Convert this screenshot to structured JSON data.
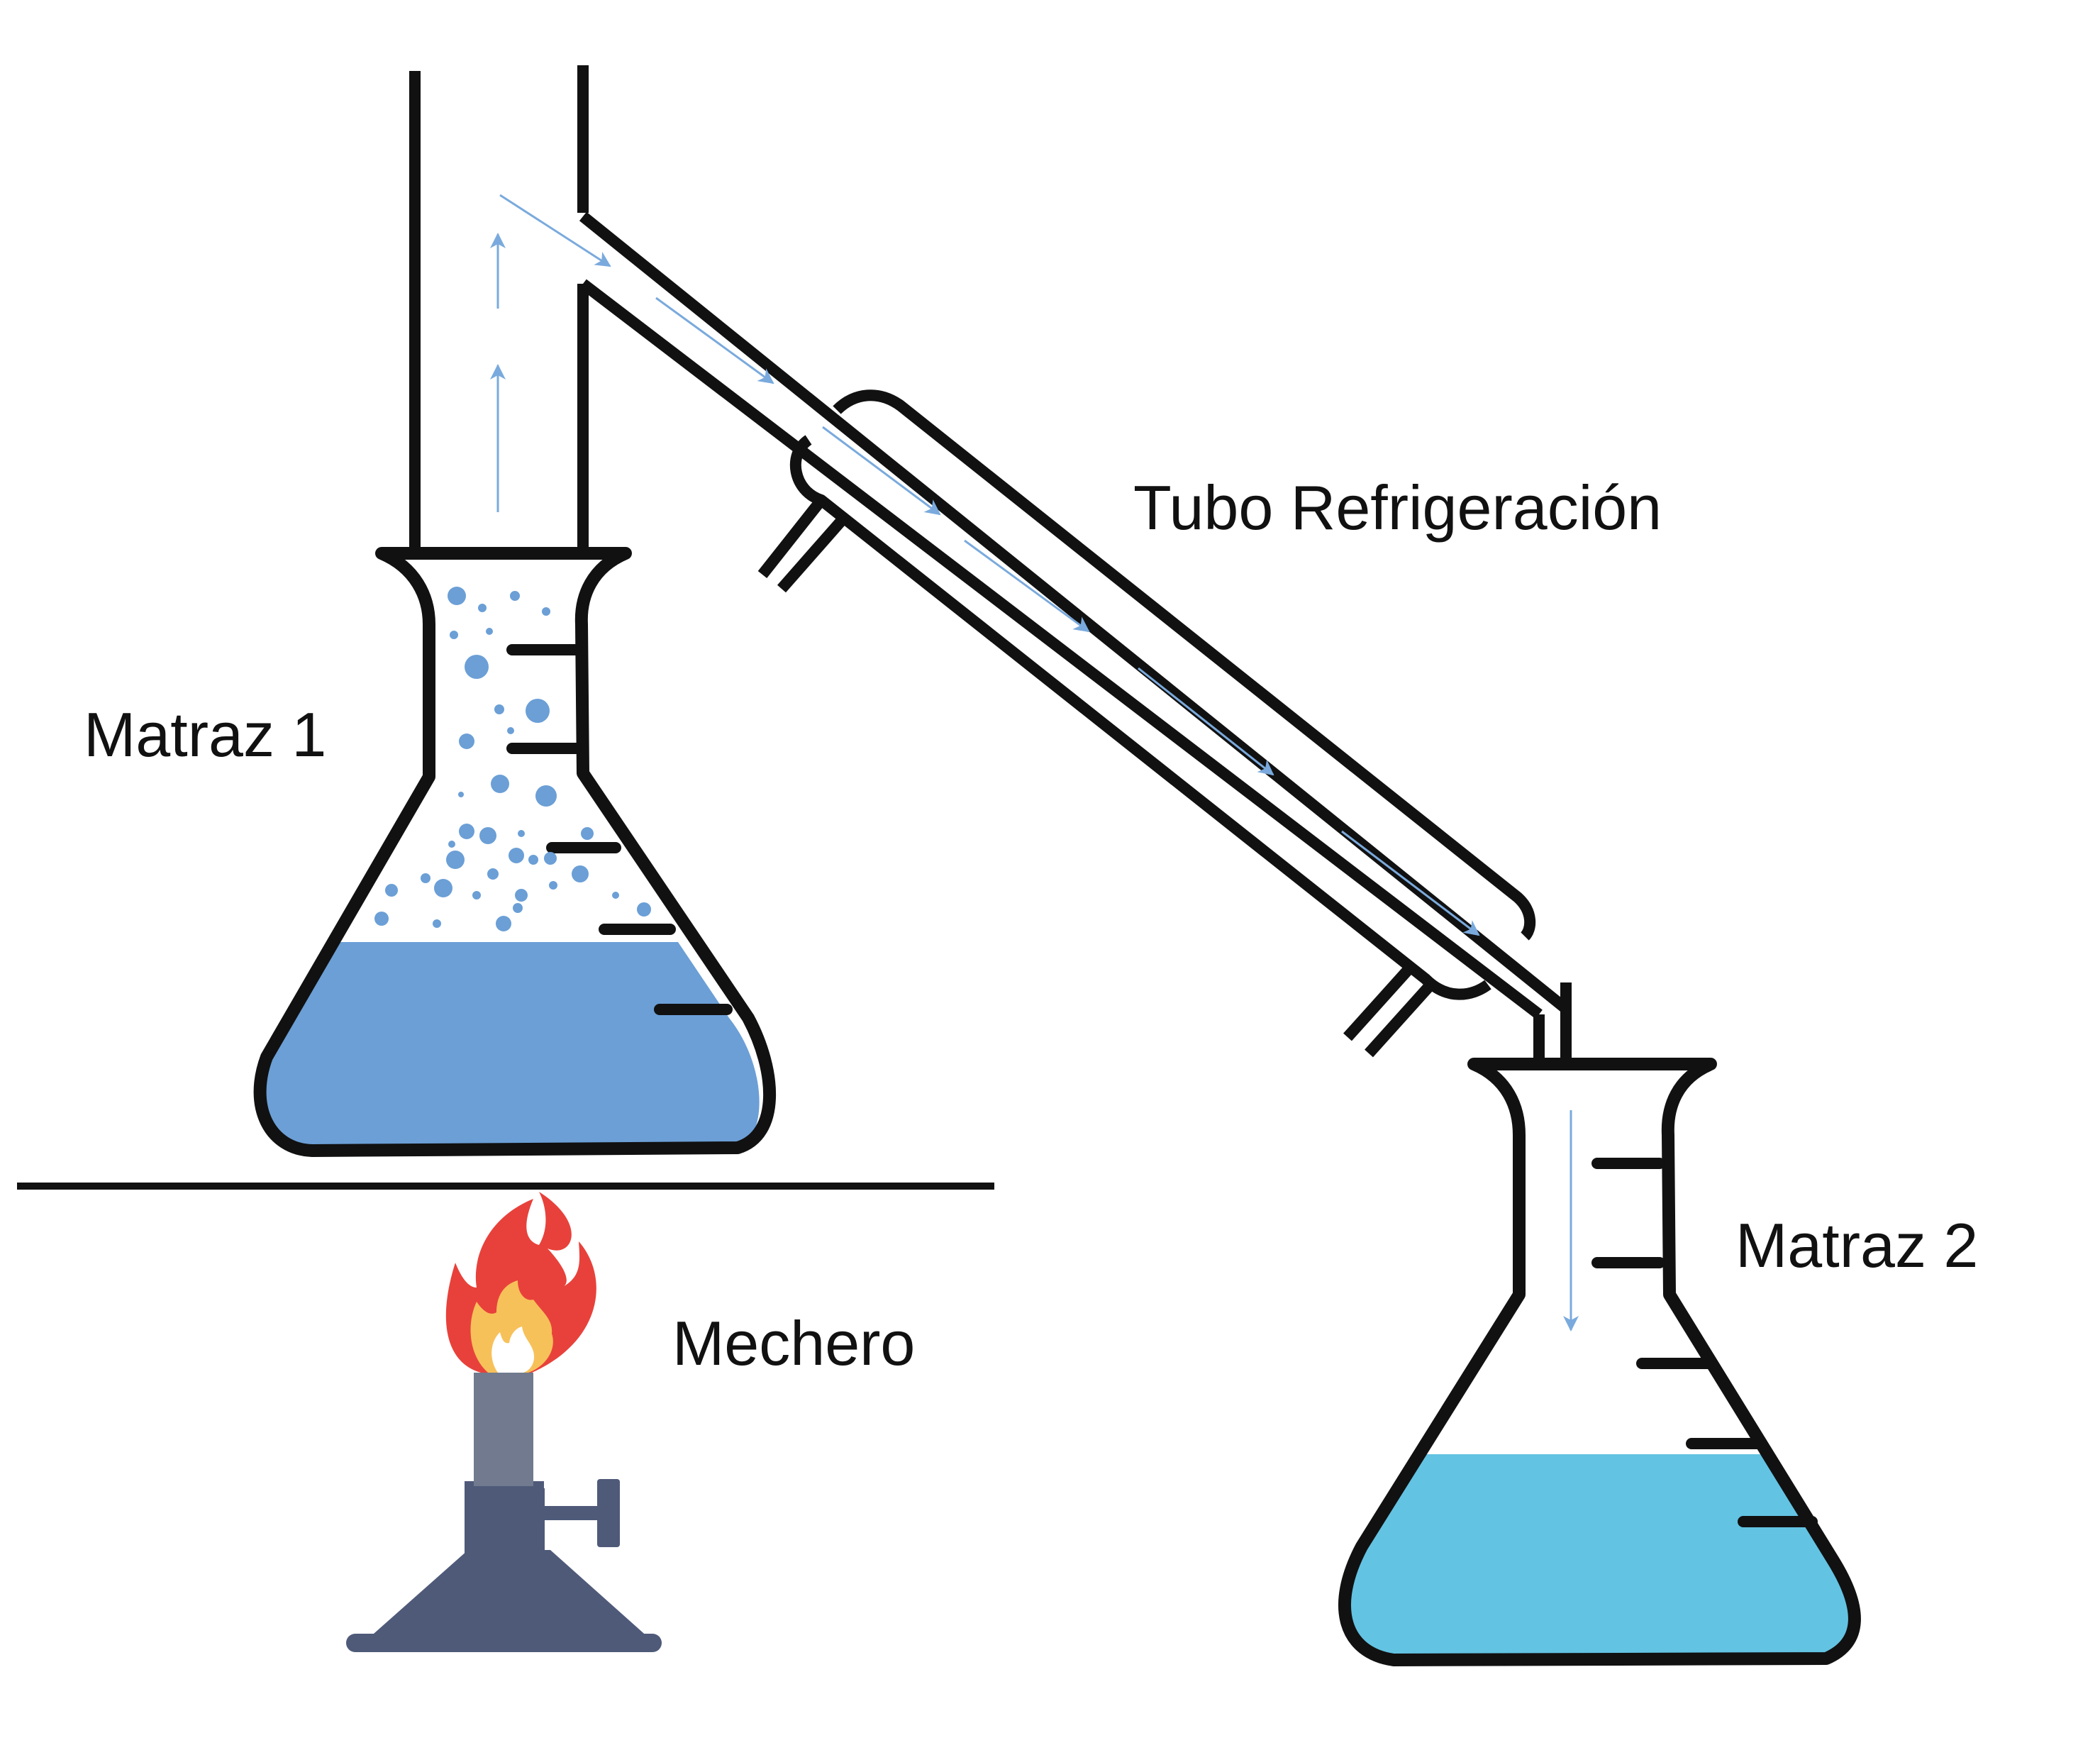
{
  "labels": {
    "tube": "Tubo Refrigeración",
    "flask1": "Matraz 1",
    "burner": "Mechero",
    "flask2": "Matraz 2"
  },
  "colors": {
    "outline": "#111111",
    "liquid_flask1": "#6b9fd6",
    "liquid_flask2": "#63c3e3",
    "bubbles": "#6b9fd6",
    "flow_arrows": "#7aaadd",
    "flame_outer": "#e8413b",
    "flame_inner": "#f7c15a",
    "burner_tube": "#717a8e",
    "burner_base": "#4f5a79"
  },
  "icons": [
    "flame-icon",
    "bunsen-burner-icon"
  ]
}
